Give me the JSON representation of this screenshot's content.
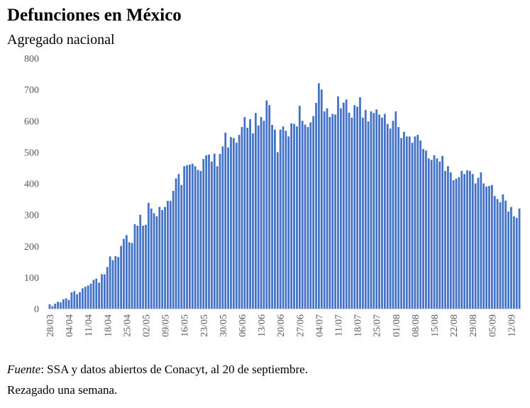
{
  "chart_data": {
    "type": "bar",
    "title": "Defunciones en México",
    "subtitle": "Agregado nacional",
    "xlabel": "",
    "ylabel": "",
    "ylim": [
      0,
      800
    ],
    "yticks": [
      0,
      100,
      200,
      300,
      400,
      500,
      600,
      700,
      800
    ],
    "bar_color": "#4472C4",
    "xtick_labels": [
      "28/03",
      "04/04",
      "11/04",
      "18/04",
      "25/04",
      "02/05",
      "09/05",
      "16/05",
      "23/05",
      "30/05",
      "06/06",
      "13/06",
      "20/06",
      "27/06",
      "04/07",
      "11/07",
      "18/07",
      "25/07",
      "01/08",
      "08/08",
      "15/08",
      "22/08",
      "29/08",
      "05/09",
      "12/09"
    ],
    "values": [
      14,
      8,
      16,
      22,
      20,
      30,
      33,
      28,
      52,
      56,
      46,
      53,
      65,
      70,
      74,
      80,
      92,
      96,
      83,
      110,
      110,
      133,
      167,
      155,
      168,
      165,
      200,
      223,
      235,
      212,
      210,
      270,
      265,
      300,
      265,
      268,
      338,
      320,
      305,
      295,
      325,
      315,
      325,
      344,
      344,
      376,
      416,
      430,
      395,
      455,
      458,
      460,
      463,
      455,
      443,
      440,
      478,
      490,
      492,
      470,
      495,
      455,
      494,
      518,
      562,
      515,
      548,
      545,
      530,
      555,
      580,
      612,
      578,
      605,
      560,
      625,
      585,
      612,
      600,
      665,
      650,
      587,
      572,
      500,
      572,
      582,
      568,
      550,
      592,
      590,
      582,
      648,
      600,
      588,
      580,
      595,
      615,
      657,
      720,
      700,
      630,
      640,
      612,
      622,
      620,
      678,
      640,
      658,
      668,
      626,
      610,
      650,
      645,
      675,
      610,
      635,
      598,
      630,
      625,
      636,
      620,
      610,
      622,
      590,
      575,
      600,
      630,
      580,
      545,
      565,
      550,
      550,
      530,
      550,
      555,
      537,
      510,
      505,
      480,
      475,
      490,
      480,
      470,
      488,
      440,
      455,
      435,
      410,
      415,
      420,
      440,
      430,
      442,
      440,
      430,
      400,
      418,
      435,
      400,
      390,
      392,
      395,
      360,
      350,
      340,
      365,
      345,
      310,
      325,
      295,
      290,
      320
    ]
  },
  "footer": {
    "source_label": "Fuente",
    "source_text": ": SSA y datos abiertos de Conacyt, al 20 de septiembre.",
    "note": "Rezagado una semana."
  }
}
